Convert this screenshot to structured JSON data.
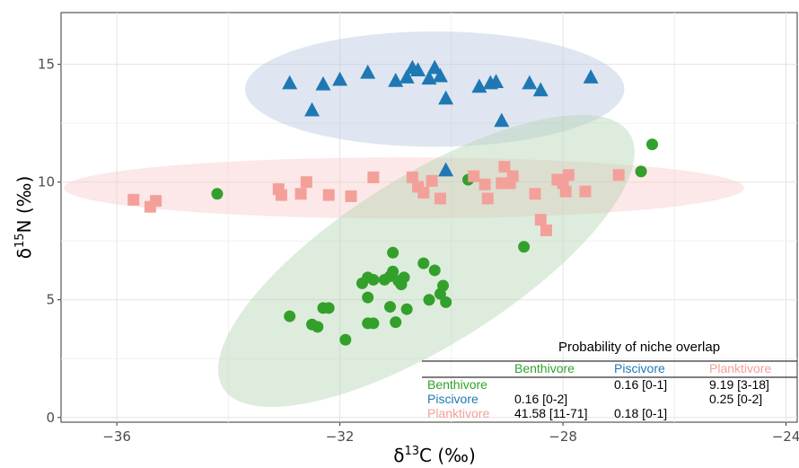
{
  "chart_data": {
    "type": "scatter",
    "xlabel": "δ13C (‰)",
    "ylabel": "δ15N (‰)",
    "xlim": [
      -37,
      -23.8
    ],
    "ylim": [
      -0.2,
      17.2
    ],
    "x_ticks": [
      -36,
      -32,
      -28,
      -24
    ],
    "y_ticks": [
      0,
      5,
      10,
      15
    ],
    "x_tick_labels": [
      "−36",
      "−32",
      "−28",
      "−24"
    ],
    "y_tick_labels": [
      "0",
      "5",
      "10",
      "15"
    ],
    "grid": true,
    "series": [
      {
        "name": "Benthivore",
        "color": "#33a02c",
        "marker": "circle",
        "points": [
          [
            -34.2,
            9.5
          ],
          [
            -29.7,
            10.1
          ],
          [
            -28.7,
            7.25
          ],
          [
            -26.6,
            10.45
          ],
          [
            -26.4,
            11.6
          ],
          [
            -32.9,
            4.3
          ],
          [
            -32.5,
            3.95
          ],
          [
            -32.4,
            3.85
          ],
          [
            -32.3,
            4.65
          ],
          [
            -32.2,
            4.65
          ],
          [
            -31.9,
            3.3
          ],
          [
            -31.6,
            5.7
          ],
          [
            -31.5,
            4.0
          ],
          [
            -31.5,
            5.1
          ],
          [
            -31.5,
            5.95
          ],
          [
            -31.4,
            5.85
          ],
          [
            -31.4,
            4.0
          ],
          [
            -31.2,
            5.85
          ],
          [
            -31.1,
            4.7
          ],
          [
            -31.1,
            6.0
          ],
          [
            -31.05,
            6.2
          ],
          [
            -31.05,
            7.0
          ],
          [
            -31.0,
            4.05
          ],
          [
            -30.95,
            5.8
          ],
          [
            -30.9,
            5.65
          ],
          [
            -30.85,
            5.95
          ],
          [
            -30.8,
            4.6
          ],
          [
            -30.5,
            6.55
          ],
          [
            -30.4,
            5.0
          ],
          [
            -30.3,
            6.25
          ],
          [
            -30.2,
            5.25
          ],
          [
            -30.15,
            5.6
          ],
          [
            -30.1,
            4.9
          ]
        ]
      },
      {
        "name": "Piscivore",
        "color": "#1f78b4",
        "marker": "triangle",
        "points": [
          [
            -32.9,
            14.2
          ],
          [
            -32.5,
            13.05
          ],
          [
            -32.3,
            14.15
          ],
          [
            -32.0,
            14.35
          ],
          [
            -31.5,
            14.65
          ],
          [
            -31.0,
            14.3
          ],
          [
            -30.8,
            14.45
          ],
          [
            -30.7,
            14.85
          ],
          [
            -30.6,
            14.75
          ],
          [
            -30.4,
            14.4
          ],
          [
            -30.3,
            14.85
          ],
          [
            -30.2,
            14.5
          ],
          [
            -30.1,
            13.55
          ],
          [
            -29.5,
            14.05
          ],
          [
            -29.3,
            14.2
          ],
          [
            -29.2,
            14.25
          ],
          [
            -29.1,
            12.6
          ],
          [
            -28.6,
            14.2
          ],
          [
            -28.4,
            13.9
          ],
          [
            -27.5,
            14.45
          ],
          [
            -30.1,
            10.5
          ]
        ]
      },
      {
        "name": "Planktivore",
        "color": "#f4a09a",
        "marker": "square",
        "points": [
          [
            -35.7,
            9.25
          ],
          [
            -35.4,
            8.95
          ],
          [
            -35.3,
            9.2
          ],
          [
            -33.1,
            9.7
          ],
          [
            -33.05,
            9.45
          ],
          [
            -32.7,
            9.5
          ],
          [
            -32.6,
            10.0
          ],
          [
            -32.2,
            9.45
          ],
          [
            -31.8,
            9.4
          ],
          [
            -31.4,
            10.2
          ],
          [
            -30.7,
            10.2
          ],
          [
            -30.6,
            9.8
          ],
          [
            -30.5,
            9.55
          ],
          [
            -30.35,
            10.05
          ],
          [
            -30.2,
            9.3
          ],
          [
            -29.6,
            10.25
          ],
          [
            -29.4,
            9.9
          ],
          [
            -29.35,
            9.3
          ],
          [
            -29.1,
            9.95
          ],
          [
            -29.05,
            10.65
          ],
          [
            -28.95,
            9.95
          ],
          [
            -28.9,
            10.25
          ],
          [
            -28.5,
            9.5
          ],
          [
            -28.4,
            8.4
          ],
          [
            -28.3,
            7.95
          ],
          [
            -28.1,
            10.1
          ],
          [
            -28.0,
            9.95
          ],
          [
            -27.95,
            9.6
          ],
          [
            -27.9,
            10.3
          ],
          [
            -27.6,
            9.6
          ],
          [
            -27.0,
            10.3
          ]
        ]
      }
    ],
    "ellipses": [
      {
        "group": "Piscivore",
        "fill": "#b8c7e0",
        "cx": -30.3,
        "cy": 13.95,
        "rx": 3.4,
        "ry": 2.45,
        "angle": 0
      },
      {
        "group": "Planktivore",
        "fill": "#f8cccc",
        "cx": -30.85,
        "cy": 9.75,
        "rx": 6.1,
        "ry": 1.3,
        "angle": 0
      },
      {
        "group": "Benthivore",
        "fill": "#b6d4b4",
        "cx": -30.45,
        "cy": 6.65,
        "rx": 4.3,
        "ry": 3.6,
        "angle": -32
      }
    ],
    "overlap_table": {
      "title": "Probability of niche overlap",
      "columns": [
        {
          "label": "Benthivore",
          "color": "#33a02c"
        },
        {
          "label": "Piscivore",
          "color": "#1f78b4"
        },
        {
          "label": "Planktivore",
          "color": "#f4a09a"
        }
      ],
      "rows": [
        {
          "label": "Benthivore",
          "color": "#33a02c",
          "cells": [
            "",
            "0.16 [0-1]",
            "9.19 [3-18]"
          ]
        },
        {
          "label": "Piscivore",
          "color": "#1f78b4",
          "cells": [
            "0.16 [0-2]",
            "",
            "0.25 [0-2]"
          ]
        },
        {
          "label": "Planktivore",
          "color": "#f4a09a",
          "cells": [
            "41.58 [11-71]",
            "0.18 [0-1]",
            ""
          ]
        }
      ]
    }
  }
}
